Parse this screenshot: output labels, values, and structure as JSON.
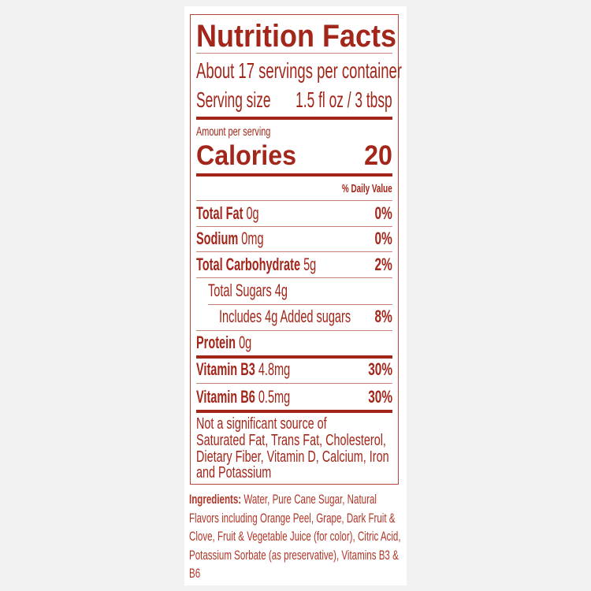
{
  "title": "Nutrition Facts",
  "servings": "About 17 servings per container",
  "serving_size": {
    "label": "Serving size",
    "value": "1.5 fl oz / 3 tbsp"
  },
  "amount_per_serving": "Amount per serving",
  "calories": {
    "label": "Calories",
    "value": "20"
  },
  "daily_value_header": "% Daily Value",
  "nutrients": [
    {
      "label": "Total Fat",
      "amount": "0g",
      "dv": "0%"
    },
    {
      "label": "Sodium",
      "amount": "0mg",
      "dv": "0%"
    },
    {
      "label": "Total Carbohydrate",
      "amount": "5g",
      "dv": "2%"
    },
    {
      "label": "Total Sugars 4g",
      "amount": "",
      "dv": ""
    },
    {
      "label": "Includes 4g Added sugars",
      "amount": "",
      "dv": "8%"
    },
    {
      "label": "Protein",
      "amount": "0g",
      "dv": ""
    },
    {
      "label": "Vitamin B3",
      "amount": "4.8mg",
      "dv": "30%"
    },
    {
      "label": "Vitamin B6",
      "amount": "0.5mg",
      "dv": "30%"
    }
  ],
  "footnote": [
    "Not a significant source of",
    "Saturated Fat, Trans Fat, Cholesterol,",
    "Dietary Fiber, Vitamin D, Calcium, Iron",
    "and Potassium"
  ],
  "ingredients": {
    "label": "Ingredients:",
    "text": "Water, Pure Cane Sugar, Natural Flavors including Orange Peel, Grape, Dark Fruit & Clove, Fruit & Vegetable Juice (for color), Citric Acid, Potassium Sorbate (as preservative), Vitamins B3 & B6"
  },
  "colors": {
    "text": "#a3261a",
    "background": "#f2f2f2"
  }
}
